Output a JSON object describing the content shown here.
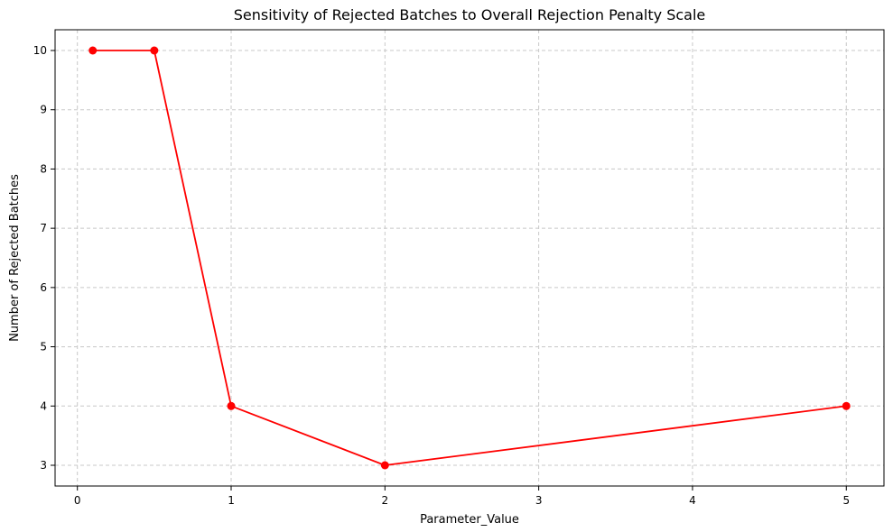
{
  "chart_data": {
    "type": "line",
    "title": "Sensitivity of Rejected Batches to Overall Rejection Penalty Scale",
    "xlabel": "Parameter_Value",
    "ylabel": "Number of Rejected Batches",
    "x": [
      0.1,
      0.5,
      1,
      2,
      5
    ],
    "series": [
      {
        "values": [
          10,
          10,
          4,
          3,
          4
        ],
        "color": "#ff0000",
        "marker": "circle"
      }
    ],
    "xlim": [
      -0.145,
      5.245
    ],
    "ylim": [
      2.65,
      10.35
    ],
    "xticks": [
      0,
      1,
      2,
      3,
      4,
      5
    ],
    "xtick_labels": [
      "0",
      "1",
      "2",
      "3",
      "4",
      "5"
    ],
    "yticks": [
      3,
      4,
      5,
      6,
      7,
      8,
      9,
      10
    ],
    "ytick_labels": [
      "3",
      "4",
      "5",
      "6",
      "7",
      "8",
      "9",
      "10"
    ],
    "grid": true,
    "grid_style": "dashed",
    "grid_color": "#c8c8c8"
  }
}
